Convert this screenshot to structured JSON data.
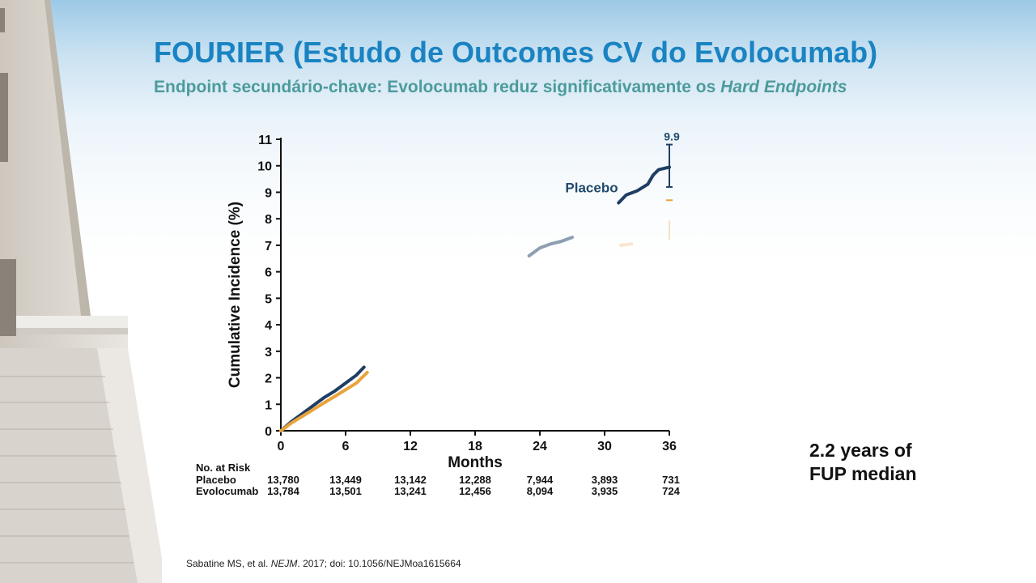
{
  "slide": {
    "title": "FOURIER (Estudo de Outcomes CV do Evolocumab)",
    "subtitle_prefix": "Endpoint secundário-chave: Evolocumab reduz significativamente os ",
    "subtitle_italic": "Hard Endpoints",
    "note_line1": "2.2 years of",
    "note_line2": "FUP median",
    "citation_prefix": "Sabatine MS, et al. ",
    "citation_journal": "NEJM",
    "citation_suffix": ". 2017; doi: 10.1056/NEJMoa1615664"
  },
  "chart_data": {
    "type": "line",
    "ylabel": "Cumulative Incidence (%)",
    "xlabel": "Months",
    "xlim": [
      0,
      36
    ],
    "ylim": [
      0,
      11
    ],
    "x_ticks": [
      0,
      6,
      12,
      18,
      24,
      30,
      36
    ],
    "y_ticks": [
      0,
      1,
      2,
      3,
      4,
      5,
      6,
      7,
      8,
      9,
      10,
      11
    ],
    "colors": {
      "placebo": "#1f3e63",
      "evolocumab": "#e8a33c",
      "axis": "#111111",
      "label": "#1f4a6e"
    },
    "series": [
      {
        "name": "Placebo",
        "segments": [
          {
            "x": [
              0,
              1,
              2,
              3,
              4,
              5,
              6,
              7,
              7.7
            ],
            "y": [
              0,
              0.35,
              0.65,
              0.95,
              1.25,
              1.5,
              1.8,
              2.1,
              2.4
            ],
            "opacity": 1
          },
          {
            "x": [
              23,
              24,
              25,
              26,
              27
            ],
            "y": [
              6.6,
              6.9,
              7.05,
              7.15,
              7.3
            ],
            "opacity": 0.5
          },
          {
            "x": [
              31.3,
              32,
              33,
              34,
              34.5,
              35,
              36
            ],
            "y": [
              8.6,
              8.9,
              9.05,
              9.3,
              9.65,
              9.85,
              9.95
            ],
            "opacity": 1
          }
        ]
      },
      {
        "name": "Evolocumab",
        "segments": [
          {
            "x": [
              0,
              1,
              2,
              3,
              4,
              5,
              6,
              7,
              8
            ],
            "y": [
              0,
              0.3,
              0.55,
              0.8,
              1.05,
              1.3,
              1.55,
              1.8,
              2.2
            ],
            "opacity": 1
          },
          {
            "x": [
              31.5,
              32.5
            ],
            "y": [
              7.0,
              7.05
            ],
            "opacity": 0.25
          }
        ]
      }
    ],
    "annotations": {
      "difference_label": "9.9",
      "series_label": "Placebo",
      "bracket": {
        "x": 36,
        "y_top": 10.8,
        "y_bottom": 9.2
      },
      "evolocumab_marker": {
        "x": 36,
        "y_top": 8.7,
        "y_bottom": 7.2
      }
    },
    "at_risk": {
      "header": "No. at Risk",
      "rows": [
        {
          "label": "Placebo",
          "values": [
            "13,780",
            "13,449",
            "13,142",
            "12,288",
            "7,944",
            "3,893",
            "731"
          ]
        },
        {
          "label": "Evolocumab",
          "values": [
            "13,784",
            "13,501",
            "13,241",
            "12,456",
            "8,094",
            "3,935",
            "724"
          ]
        }
      ]
    }
  }
}
